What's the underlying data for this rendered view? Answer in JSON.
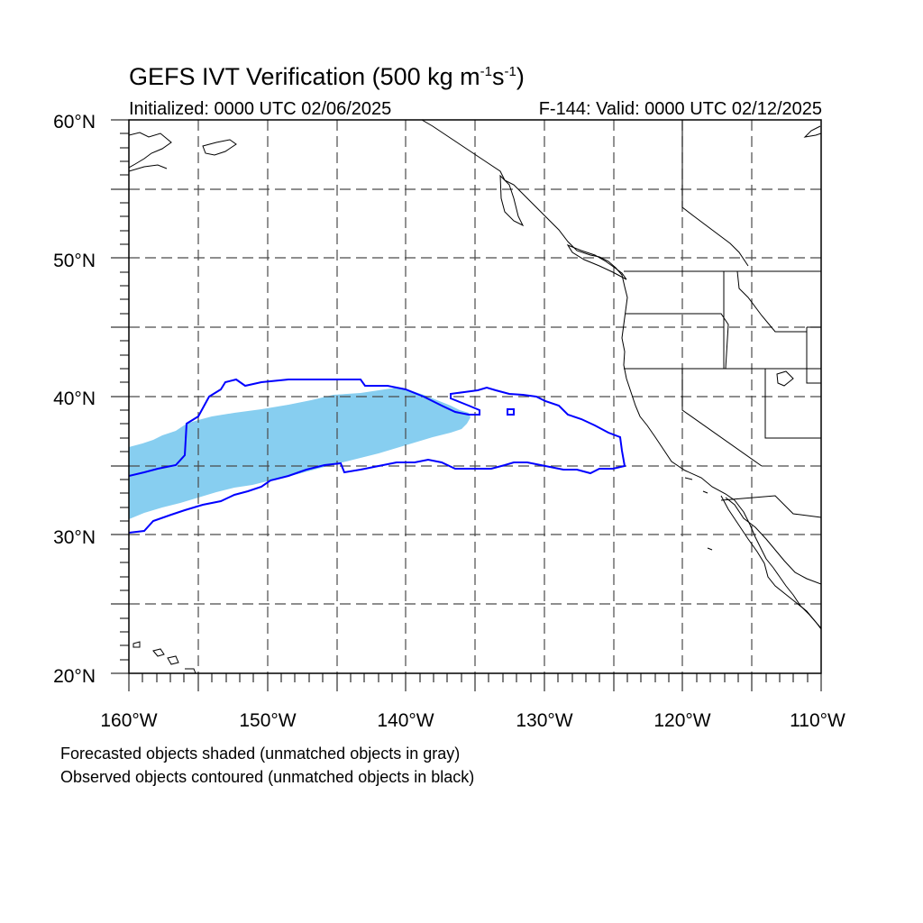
{
  "title": {
    "main": "GEFS IVT Verification (500 kg m",
    "exp1": "-1",
    "mid": "s",
    "exp2": "-1",
    "end": ")"
  },
  "initialized": "Initialized: 0000 UTC 02/06/2025",
  "valid": "F-144: Valid: 0000 UTC 02/12/2025",
  "map": {
    "lon_range": [
      -160,
      -110
    ],
    "lat_range": [
      20,
      60
    ],
    "projection": "cylindrical equidistant",
    "gridlines": "dashed gray every 5 degrees",
    "lat_labels": [
      "60°N",
      "50°N",
      "40°N",
      "30°N",
      "20°N"
    ],
    "lon_labels": [
      "160°W",
      "150°W",
      "140°W",
      "130°W",
      "120°W",
      "110°W"
    ],
    "forecast_object_color": "#87cef0",
    "observed_contour_color": "#0000ff",
    "coastline_color": "#000000"
  },
  "notes": {
    "line1": "Forecasted objects shaded (unmatched objects in gray)",
    "line2": "Observed objects contoured (unmatched objects in black)"
  }
}
